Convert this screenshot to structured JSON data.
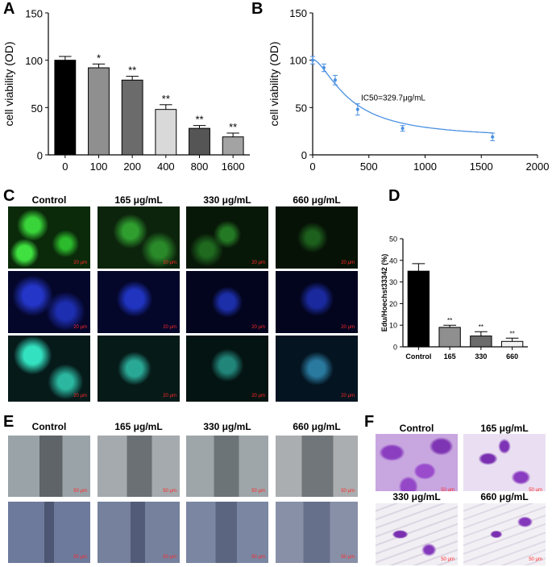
{
  "panel_letters": {
    "A": "A",
    "B": "B",
    "C": "C",
    "D": "D",
    "E": "E",
    "F": "F"
  },
  "chart_data": [
    {
      "id": "A",
      "type": "bar",
      "ylabel": "cell viability (OD)",
      "xlabel": "",
      "categories": [
        "0",
        "100",
        "200",
        "400",
        "800",
        "1600"
      ],
      "values": [
        100,
        92,
        79,
        48,
        28,
        19
      ],
      "errors": [
        4,
        4,
        4,
        5,
        3,
        4
      ],
      "significance": [
        "",
        "*",
        "**",
        "**",
        "**",
        "**"
      ],
      "colors": [
        "#000000",
        "#8f8f8f",
        "#6b6b6b",
        "#d9d9d9",
        "#555555",
        "#a3a3a3"
      ],
      "ylim": [
        0,
        150
      ],
      "yticks": [
        0,
        50,
        100,
        150
      ]
    },
    {
      "id": "B",
      "type": "line",
      "ylabel": "cell viability (OD)",
      "xlabel": "",
      "series": [
        {
          "x": [
            0,
            100,
            200,
            400,
            800,
            1600
          ],
          "y": [
            100,
            92,
            79,
            48,
            28,
            19
          ],
          "errors": [
            4,
            4,
            5,
            6,
            3,
            4
          ],
          "color": "#4a90e2"
        }
      ],
      "annotation": "IC50=329.7μg/mL",
      "xlim": [
        0,
        2000
      ],
      "ylim": [
        0,
        150
      ],
      "xticks": [
        0,
        500,
        1000,
        1500,
        2000
      ],
      "yticks": [
        0,
        50,
        100,
        150
      ]
    },
    {
      "id": "D",
      "type": "bar",
      "ylabel": "Edu/Hoechst33342 (%)",
      "xlabel": "",
      "categories": [
        "Control",
        "165",
        "330",
        "660"
      ],
      "values": [
        35,
        9,
        5,
        2.5
      ],
      "errors": [
        3.5,
        1,
        2,
        1.5
      ],
      "significance": [
        "",
        "**",
        "**",
        "**"
      ],
      "colors": [
        "#000000",
        "#8f8f8f",
        "#6b6b6b",
        "#f2f2f2"
      ],
      "ylim": [
        0,
        50
      ],
      "yticks": [
        0,
        10,
        20,
        30,
        40,
        50
      ]
    }
  ],
  "panel_C": {
    "headers": [
      "Control",
      "165 μg/mL",
      "330 μg/mL",
      "660 μg/mL"
    ],
    "scale_label": "20 μm",
    "rows": [
      "green",
      "blue",
      "merge"
    ]
  },
  "panel_E": {
    "headers": [
      "Control",
      "165 μg/mL",
      "330 μg/mL",
      "660 μg/mL"
    ],
    "scale_label": "50 μm"
  },
  "panel_F": {
    "labels": [
      "Control",
      "165 μg/mL",
      "330 μg/mL",
      "660 μg/mL"
    ],
    "scale_label": "50 μm"
  }
}
